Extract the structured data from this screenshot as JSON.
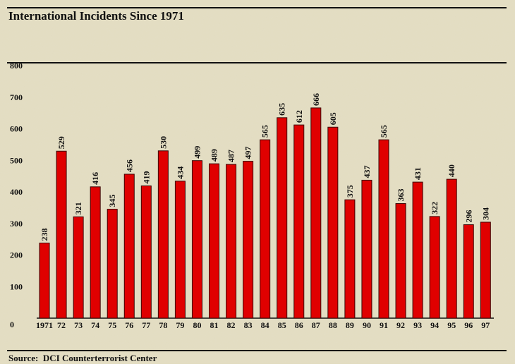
{
  "chart_data": {
    "type": "bar",
    "title": "International Incidents Since 1971",
    "source": "Source:  DCI Counterterrorist Center",
    "categories": [
      "1971",
      "72",
      "73",
      "74",
      "75",
      "76",
      "77",
      "78",
      "79",
      "80",
      "81",
      "82",
      "83",
      "84",
      "85",
      "86",
      "87",
      "88",
      "89",
      "90",
      "91",
      "92",
      "93",
      "94",
      "95",
      "96",
      "97"
    ],
    "values": [
      238,
      529,
      321,
      416,
      345,
      456,
      419,
      530,
      434,
      499,
      489,
      487,
      497,
      565,
      635,
      612,
      666,
      605,
      375,
      437,
      565,
      363,
      431,
      322,
      440,
      296,
      304
    ],
    "ylim": [
      0,
      800
    ],
    "yticks": [
      0,
      100,
      200,
      300,
      400,
      500,
      600,
      700,
      800
    ],
    "bar_color": "#e00000",
    "grid": false
  }
}
